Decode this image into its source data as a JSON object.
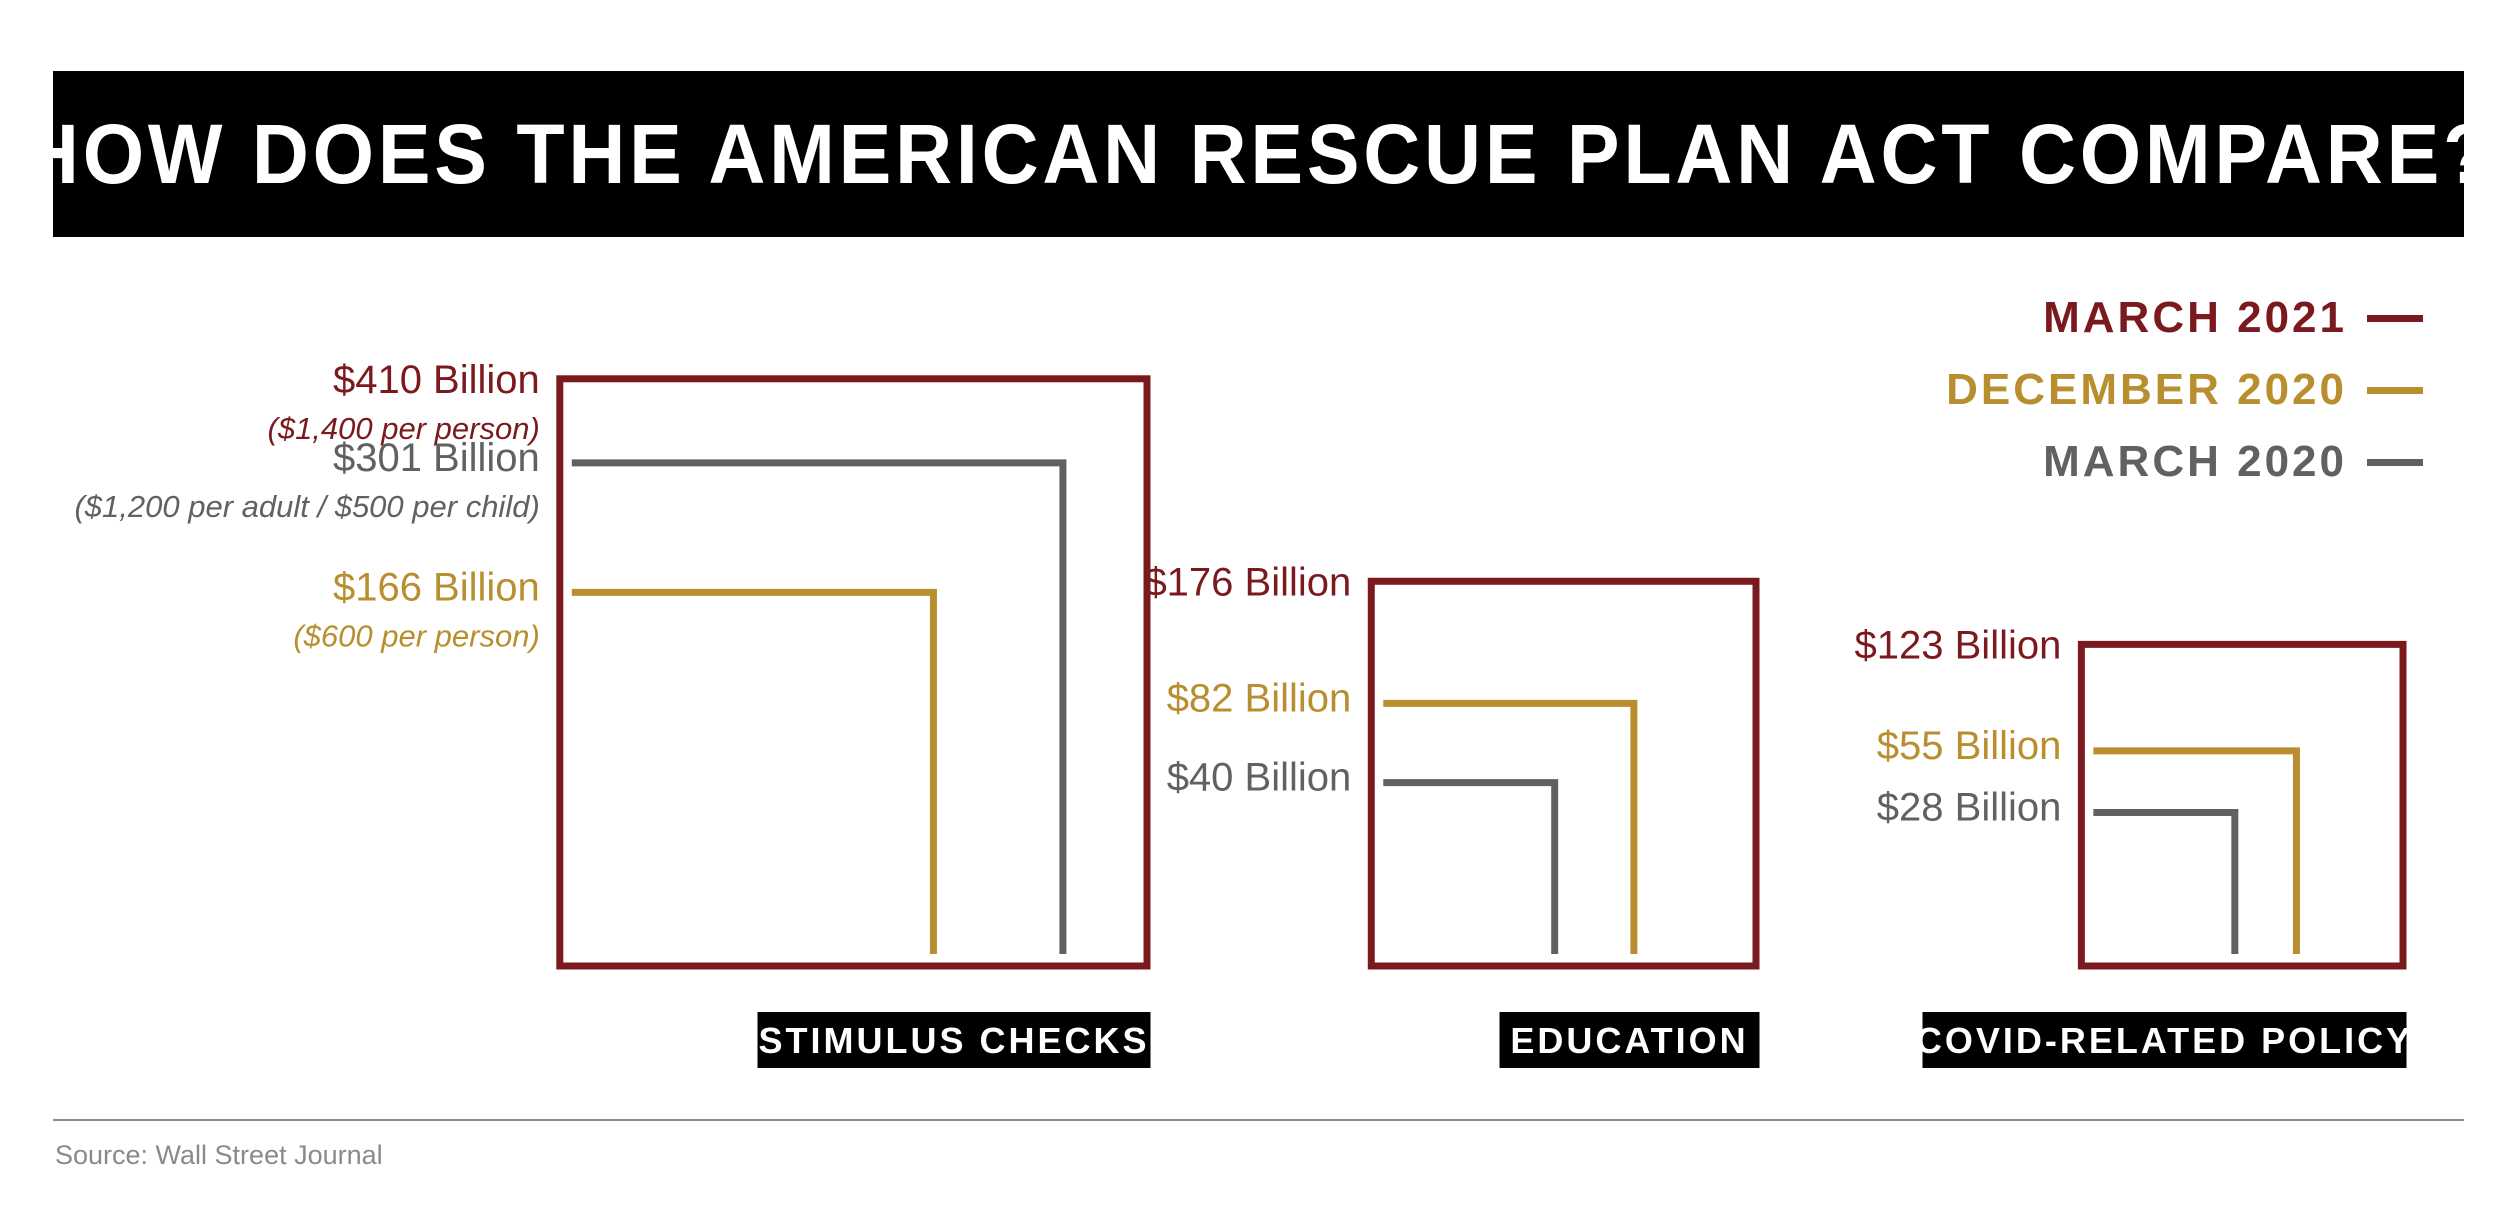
{
  "chart_data": {
    "type": "nested-square",
    "title": "HOW DOES THE AMERICAN RESCUE PLAN ACT COMPARE?",
    "unit": "Billion USD",
    "series": [
      {
        "name": "MARCH 2021",
        "color": "#7a1a1f"
      },
      {
        "name": "DECEMBER 2020",
        "color": "#b88e2f"
      },
      {
        "name": "MARCH 2020",
        "color": "#616161"
      }
    ],
    "categories": [
      {
        "name": "STIMULUS CHECKS",
        "items": [
          {
            "series": "MARCH 2021",
            "value": 410,
            "label": "$410 Billion",
            "note": "($1,400 per person)"
          },
          {
            "series": "MARCH 2020",
            "value": 301,
            "label": "$301 Billion",
            "note": "($1,200 per adult / $500 per child)"
          },
          {
            "series": "DECEMBER 2020",
            "value": 166,
            "label": "$166 Billion",
            "note": "($600 per person)"
          }
        ]
      },
      {
        "name": "EDUCATION",
        "items": [
          {
            "series": "MARCH 2021",
            "value": 176,
            "label": "$176 Billion",
            "note": ""
          },
          {
            "series": "DECEMBER 2020",
            "value": 82,
            "label": "$82 Billion",
            "note": ""
          },
          {
            "series": "MARCH 2020",
            "value": 40,
            "label": "$40 Billion",
            "note": ""
          }
        ]
      },
      {
        "name": "COVID-RELATED POLICY",
        "items": [
          {
            "series": "MARCH 2021",
            "value": 123,
            "label": "$123 Billion",
            "note": ""
          },
          {
            "series": "DECEMBER 2020",
            "value": 55,
            "label": "$55 Billion",
            "note": ""
          },
          {
            "series": "MARCH 2020",
            "value": 28,
            "label": "$28 Billion",
            "note": ""
          }
        ]
      }
    ],
    "legend_position": "top-right"
  },
  "source": "Source: Wall Street Journal"
}
